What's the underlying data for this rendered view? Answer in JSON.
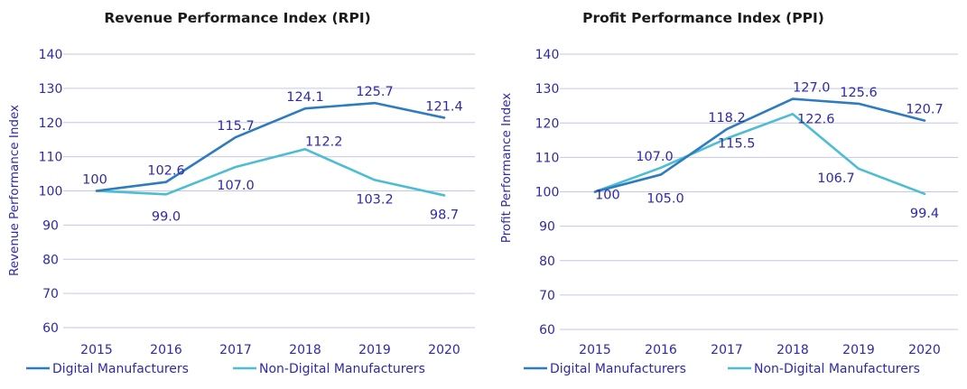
{
  "colors": {
    "digital": "#2e7bbf",
    "non_digital": "#4dbdd3",
    "text": "#2e2aa8",
    "grid": "#c7c6ea",
    "title": "#1a1a1a"
  },
  "chart_data": [
    {
      "id": "rpi",
      "type": "line",
      "title": "Revenue Performance Index (RPI)",
      "xlabel": "",
      "ylabel": "Revenue Performance Index",
      "categories": [
        "2015",
        "2016",
        "2017",
        "2018",
        "2019",
        "2020"
      ],
      "ylim": [
        60,
        140
      ],
      "yticks": [
        "60",
        "70",
        "80",
        "90",
        "100",
        "110",
        "120",
        "130",
        "140"
      ],
      "grid": true,
      "legend_position": "bottom",
      "series": [
        {
          "name": "Digital Manufacturers",
          "values": [
            100,
            102.6,
            115.7,
            124.1,
            125.7,
            121.4
          ],
          "labels": [
            "100",
            "102.6",
            "115.7",
            "124.1",
            "125.7",
            "121.4"
          ]
        },
        {
          "name": "Non-Digital Manufacturers",
          "values": [
            100,
            99.0,
            107.0,
            112.2,
            103.2,
            98.7
          ],
          "labels": [
            "",
            "99.0",
            "107.0",
            "112.2",
            "103.2",
            "98.7"
          ]
        }
      ]
    },
    {
      "id": "ppi",
      "type": "line",
      "title": "Profit Performance Index (PPI)",
      "xlabel": "",
      "ylabel": "Profit Performance Index",
      "categories": [
        "2015",
        "2016",
        "2017",
        "2018",
        "2019",
        "2020"
      ],
      "ylim": [
        60,
        140
      ],
      "yticks": [
        "60",
        "70",
        "80",
        "90",
        "100",
        "110",
        "120",
        "130",
        "140"
      ],
      "grid": true,
      "legend_position": "bottom",
      "series": [
        {
          "name": "Digital Manufacturers",
          "values": [
            100,
            105.0,
            118.2,
            127.0,
            125.6,
            120.7
          ],
          "labels": [
            "100",
            "105.0",
            "118.2",
            "127.0",
            "125.6",
            "120.7"
          ]
        },
        {
          "name": "Non-Digital Manufacturers",
          "values": [
            100,
            107.0,
            115.5,
            122.6,
            106.7,
            99.4
          ],
          "labels": [
            "",
            "107.0",
            "115.5",
            "122.6",
            "106.7",
            "99.4"
          ]
        }
      ]
    }
  ]
}
